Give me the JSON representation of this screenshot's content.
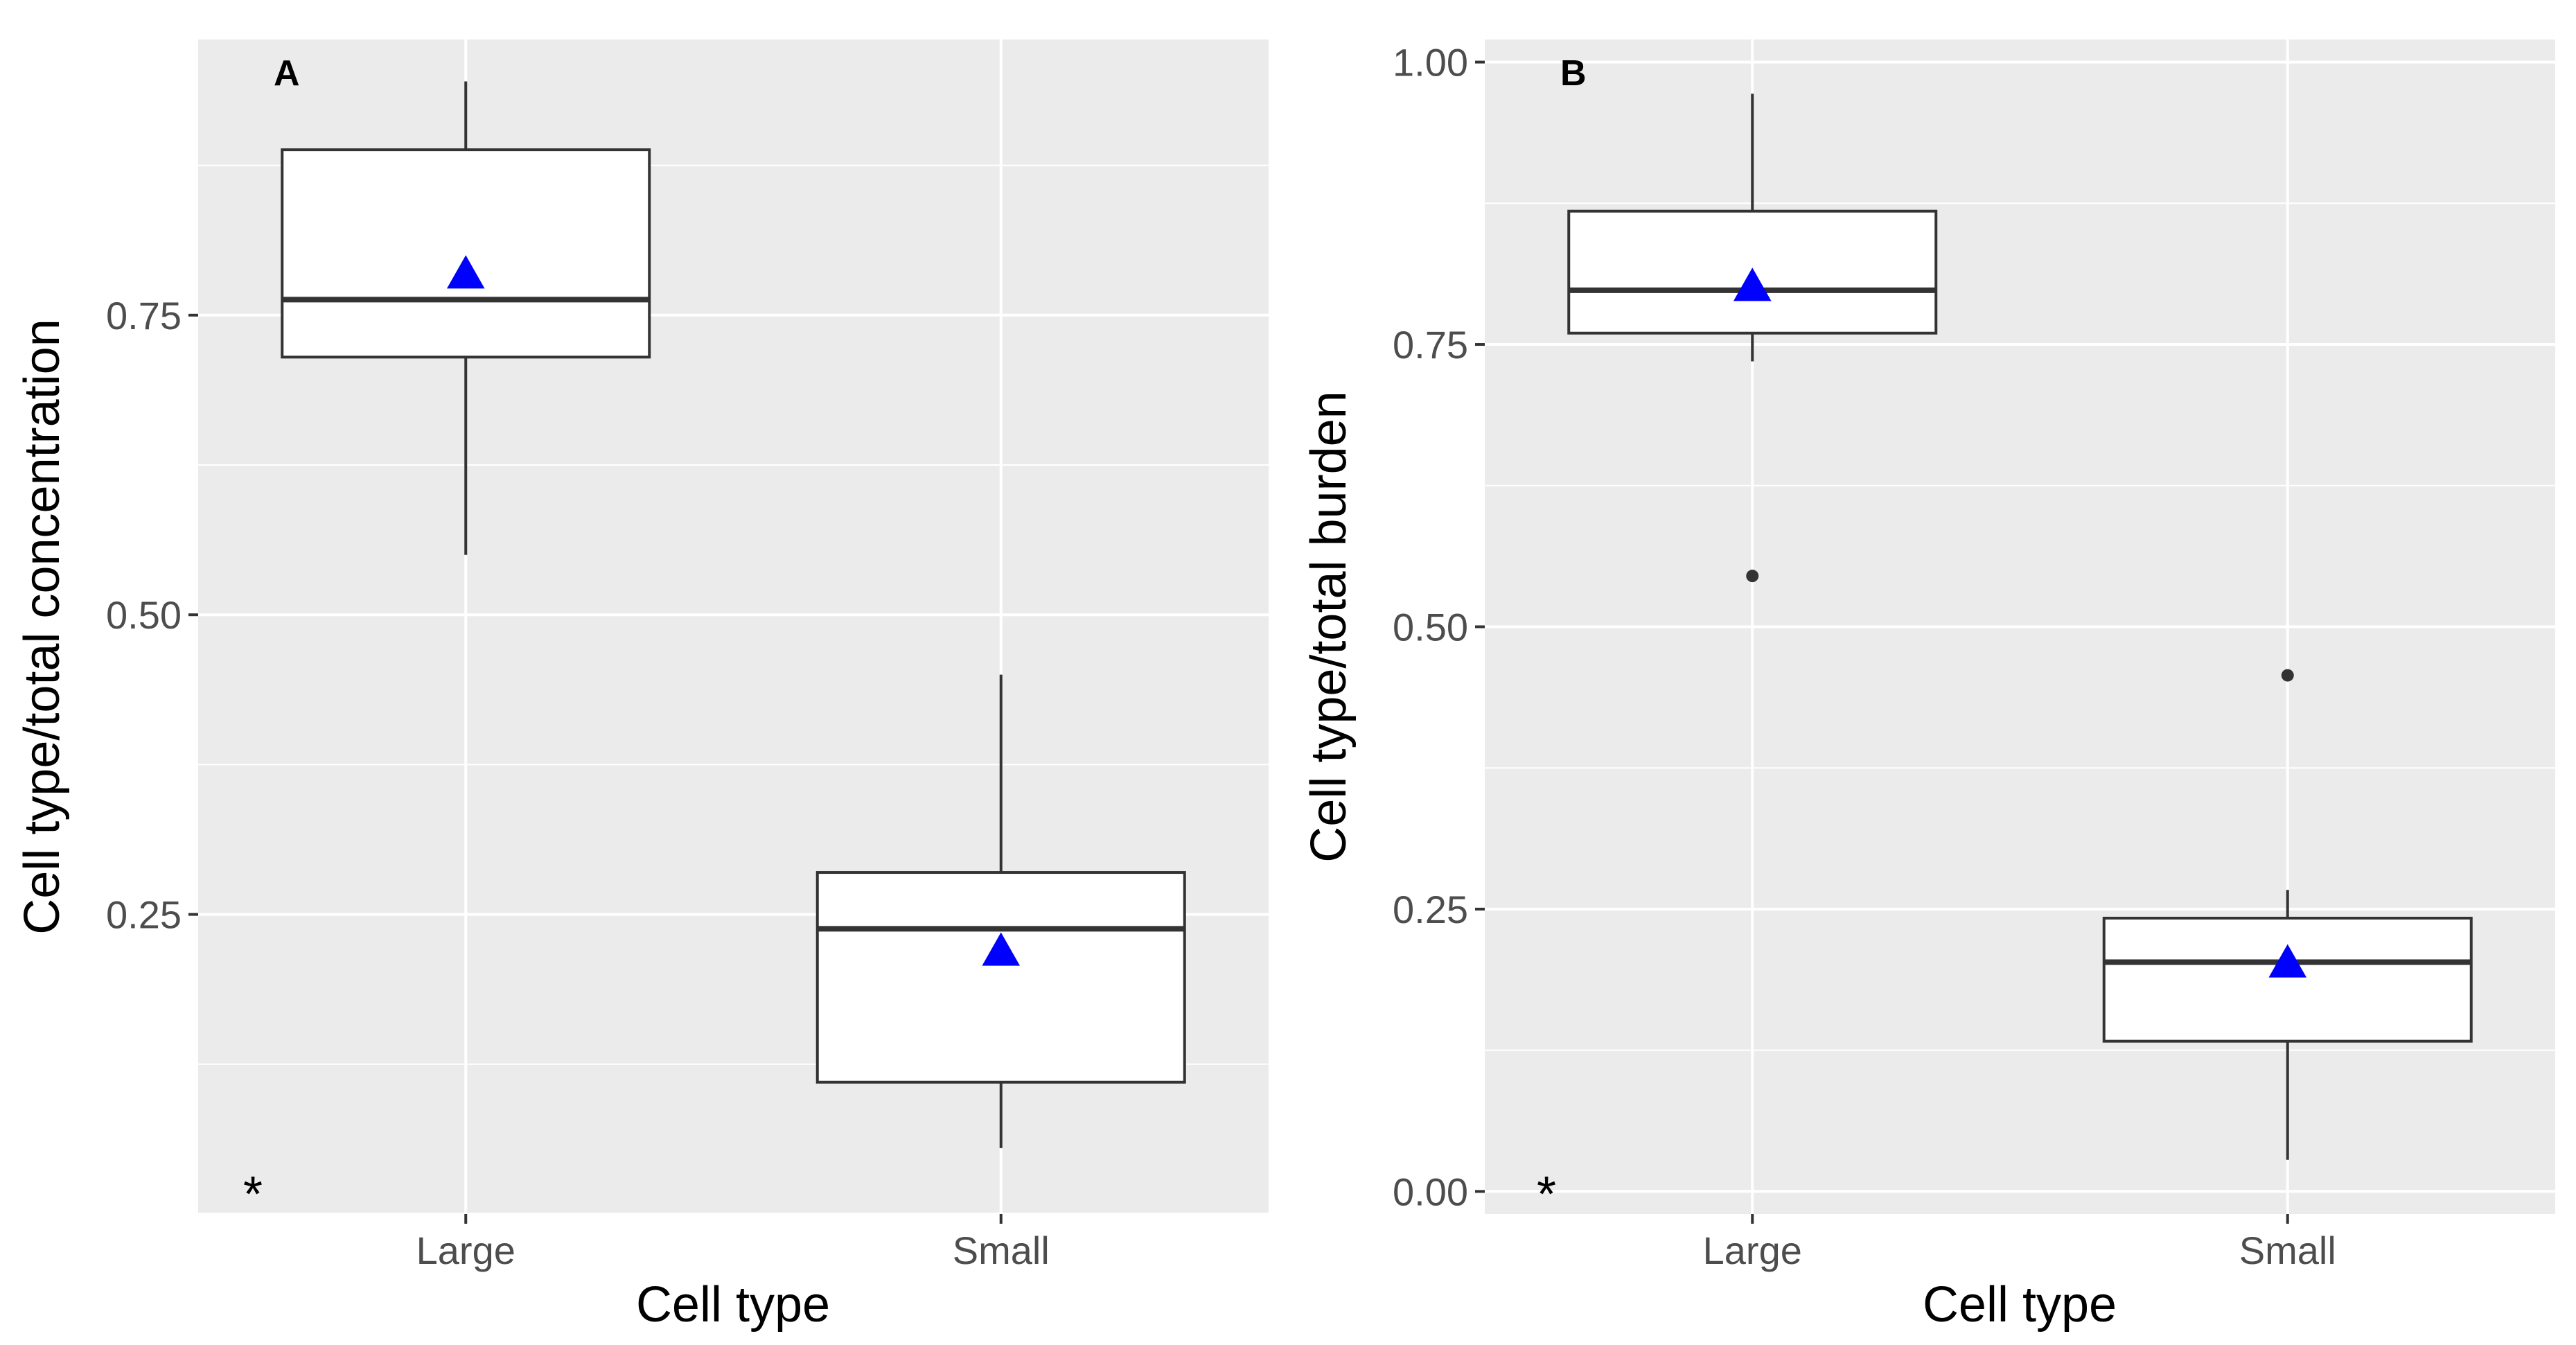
{
  "chart_data": [
    {
      "type": "box",
      "panel_label": "A",
      "annotation": "*",
      "xlabel": "Cell type",
      "ylabel": "Cell type/total concentration",
      "categories": [
        "Large",
        "Small"
      ],
      "ylim": [
        0.0,
        0.98
      ],
      "yticks": [
        0.25,
        0.5,
        0.75
      ],
      "ytick_labels": [
        "0.25",
        "0.50",
        "0.75"
      ],
      "grid": true,
      "boxes": [
        {
          "category": "Large",
          "whisker_low": 0.55,
          "q1": 0.715,
          "median": 0.763,
          "q3": 0.888,
          "whisker_high": 0.945,
          "mean": 0.785,
          "outliers": []
        },
        {
          "category": "Small",
          "whisker_low": 0.055,
          "q1": 0.11,
          "median": 0.238,
          "q3": 0.285,
          "whisker_high": 0.45,
          "mean": 0.22,
          "outliers": []
        }
      ],
      "colors": {
        "box_fill": "#ffffff",
        "box_line": "#333333",
        "mean_marker": "#0000ff",
        "panel_bg": "#ebebeb",
        "grid": "#ffffff"
      }
    },
    {
      "type": "box",
      "panel_label": "B",
      "annotation": "*",
      "xlabel": "Cell type",
      "ylabel": "Cell type/total burden",
      "categories": [
        "Large",
        "Small"
      ],
      "ylim": [
        -0.02,
        1.02
      ],
      "yticks": [
        0.0,
        0.25,
        0.5,
        0.75,
        1.0
      ],
      "ytick_labels": [
        "0.00",
        "0.25",
        "0.50",
        "0.75",
        "1.00"
      ],
      "grid": true,
      "boxes": [
        {
          "category": "Large",
          "whisker_low": 0.735,
          "q1": 0.76,
          "median": 0.798,
          "q3": 0.868,
          "whisker_high": 0.972,
          "mean": 0.802,
          "outliers": [
            0.545
          ]
        },
        {
          "category": "Small",
          "whisker_low": 0.028,
          "q1": 0.133,
          "median": 0.203,
          "q3": 0.242,
          "whisker_high": 0.267,
          "mean": 0.203,
          "outliers": [
            0.457
          ]
        }
      ],
      "colors": {
        "box_fill": "#ffffff",
        "box_line": "#333333",
        "mean_marker": "#0000ff",
        "panel_bg": "#ebebeb",
        "grid": "#ffffff"
      }
    }
  ]
}
